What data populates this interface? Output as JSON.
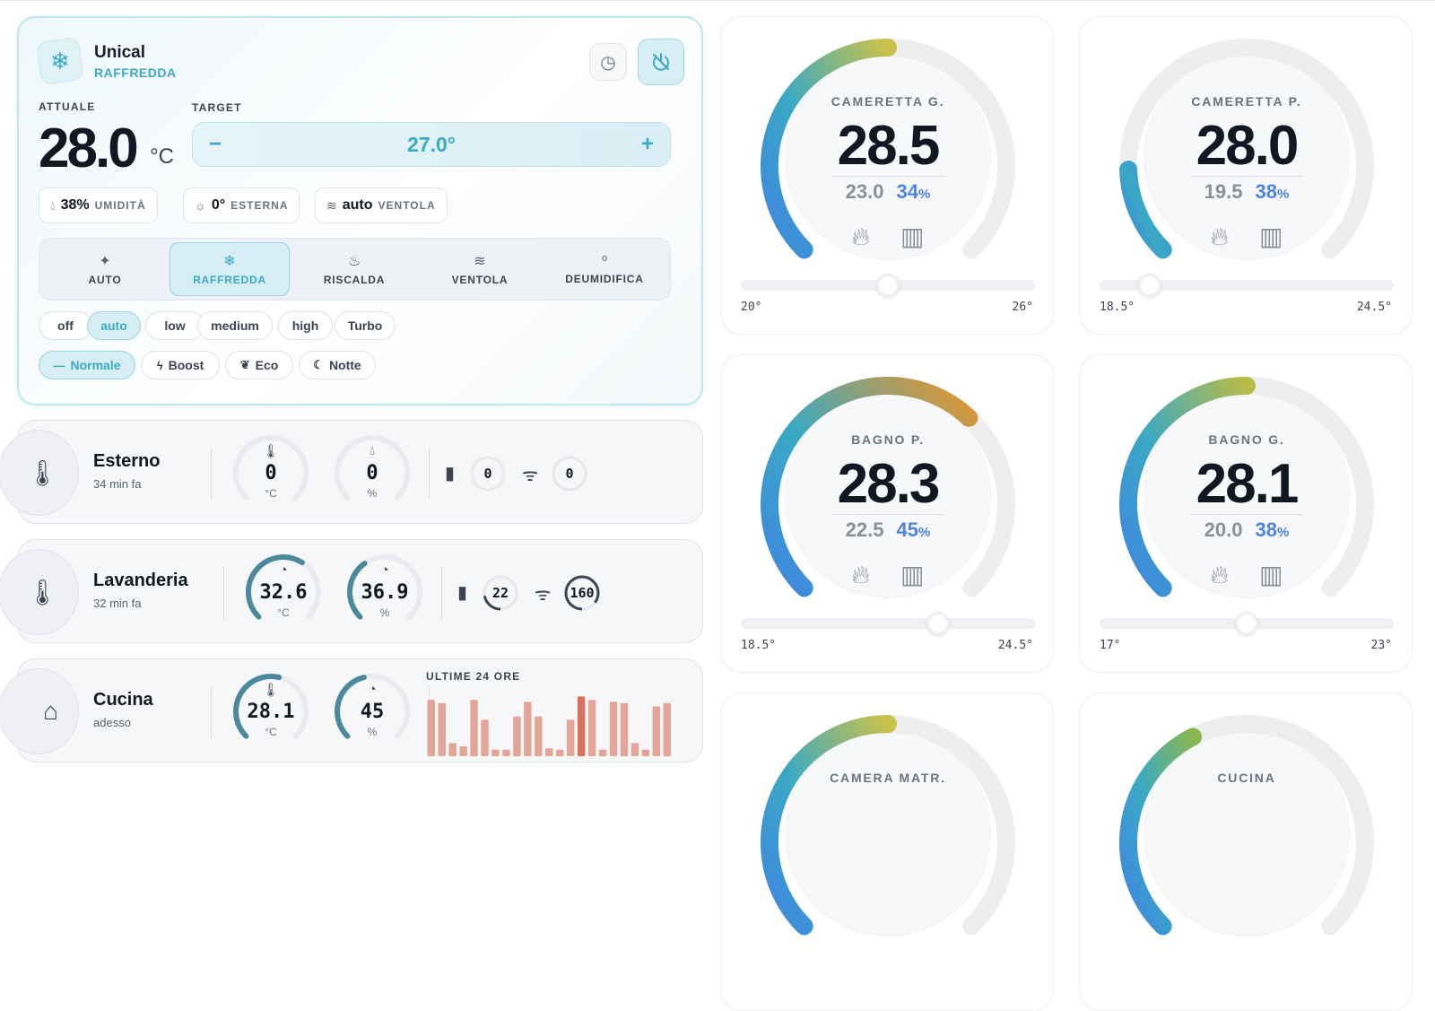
{
  "climate": {
    "name": "Unical",
    "mode": "RAFFREDDA",
    "current_label": "ATTUALE",
    "current_temp": "28.0",
    "current_unit": "°C",
    "target_label": "TARGET",
    "target_temp": "27.0°",
    "minus": "−",
    "plus": "+",
    "chips": [
      {
        "value": "38%",
        "label": "UMIDITÀ"
      },
      {
        "value": "0°",
        "label": "ESTERNA"
      },
      {
        "value": "auto",
        "label": "VENTOLA"
      }
    ],
    "modes": [
      "AUTO",
      "RAFFREDDA",
      "RISCALDA",
      "VENTOLA",
      "DEUMIDIFICA"
    ],
    "active_mode": 1,
    "fan_speeds": [
      "off",
      "auto",
      "low",
      "medium",
      "high",
      "Turbo"
    ],
    "active_fan": 1,
    "presets": [
      "Normale",
      "Boost",
      "Eco",
      "Notte"
    ],
    "active_preset": 0,
    "accent_color": "#3aa9c4"
  },
  "sensors": [
    {
      "name": "Esterno",
      "time": "34 min fa",
      "temp": "0",
      "temp_unit": "°C",
      "hum": "0",
      "hum_unit": "%",
      "battery": "0",
      "signal": "0",
      "temp_level": 0,
      "hum_level": 0,
      "icon": "thermometer-icon"
    },
    {
      "name": "Lavanderia",
      "time": "32 min fa",
      "temp": "32.6",
      "temp_unit": "°C",
      "hum": "36.9",
      "hum_unit": "%",
      "battery": "22",
      "signal": "160",
      "temp_level": 0.62,
      "hum_level": 0.37,
      "icon": "thermometer-icon"
    },
    {
      "name": "Cucina",
      "time": "adesso",
      "temp": "28.1",
      "temp_unit": "°C",
      "hum": "45",
      "hum_unit": "%",
      "chart_label": "ULTIME 24 ORE",
      "temp_level": 0.55,
      "hum_level": 0.45,
      "icon": "home-icon"
    }
  ],
  "cucina_history": [
    0.85,
    0.8,
    0.2,
    0.15,
    0.85,
    0.55,
    0.1,
    0.1,
    0.6,
    0.82,
    0.6,
    0.12,
    0.1,
    0.55,
    0.9,
    0.85,
    0.1,
    0.82,
    0.8,
    0.2,
    0.1,
    0.75,
    0.8
  ],
  "thermostats": [
    {
      "name": "CAMERETTA G.",
      "temp": "28.5",
      "target": "23.0",
      "hum": "34",
      "hum_unit": "%",
      "min": "20°",
      "max": "26°",
      "arc_fraction": 0.5,
      "slider_fraction": 0.5,
      "color_end": "#c9c24a"
    },
    {
      "name": "CAMERETTA P.",
      "temp": "28.0",
      "target": "19.5",
      "hum": "38",
      "hum_unit": "%",
      "min": "18.5°",
      "max": "24.5°",
      "arc_fraction": 0.16,
      "slider_fraction": 0.17,
      "color_end": "#3f86e0"
    },
    {
      "name": "BAGNO P.",
      "temp": "28.3",
      "target": "22.5",
      "hum": "45",
      "hum_unit": "%",
      "min": "18.5°",
      "max": "24.5°",
      "arc_fraction": 0.66,
      "slider_fraction": 0.67,
      "color_end": "#e6962e"
    },
    {
      "name": "BAGNO G.",
      "temp": "28.1",
      "target": "20.0",
      "hum": "38",
      "hum_unit": "%",
      "min": "17°",
      "max": "23°",
      "arc_fraction": 0.5,
      "slider_fraction": 0.5,
      "color_end": "#b8bb48"
    },
    {
      "name": "CAMERA MATR.",
      "arc_fraction": 0.5,
      "color_end": "#c9c24a"
    },
    {
      "name": "CUCINA",
      "arc_fraction": 0.4,
      "color_end": "#88b850"
    }
  ]
}
